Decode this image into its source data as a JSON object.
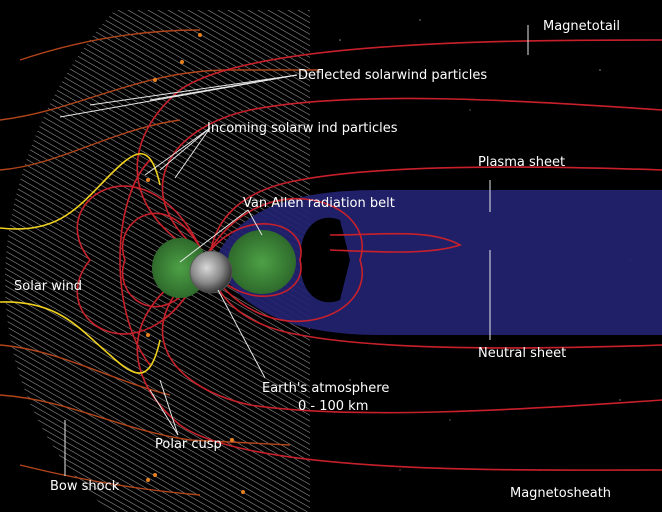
{
  "labels": {
    "magnetotail": "Magnetotail",
    "deflected": "Deflected solarwind particles",
    "incoming": "Incoming solarw ind particles",
    "plasma_sheet": "Plasma sheet",
    "van_allen": "Van Allen radiation belt",
    "solar_wind": "Solar wind",
    "neutral_sheet": "Neutral sheet",
    "atmosphere_line1": "Earth's atmosphere",
    "atmosphere_line2": "0 - 100 km",
    "polar_cusp": "Polar cusp",
    "bow_shock": "Bow shock",
    "magnetosheath": "Magnetosheath"
  },
  "colors": {
    "background": "#000000",
    "field_lines": "#c8202a",
    "outer_field_lines": "#b3451a",
    "solar_wind_lines": "#f0d21e",
    "plasma_sheet": "#2a2a78",
    "radiation_belt": "#3f8f3a",
    "label_text": "#ffffff"
  }
}
